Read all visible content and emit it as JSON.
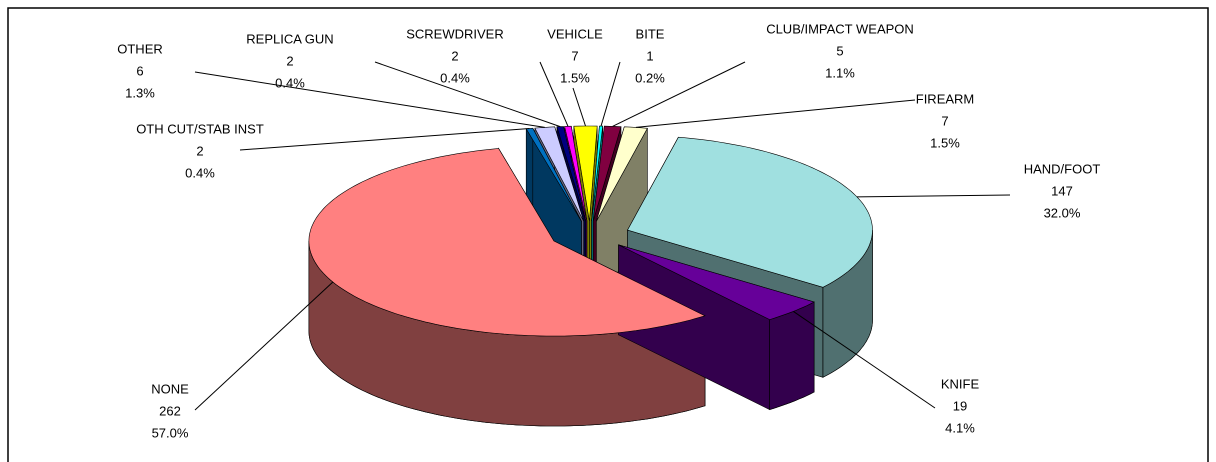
{
  "chart_data": {
    "type": "pie3d",
    "categories": [
      "HAND/FOOT",
      "KNIFE",
      "NONE",
      "OTH CUT/STAB INST",
      "OTHER",
      "REPLICA GUN",
      "SCREWDRIVER",
      "VEHICLE",
      "BITE",
      "CLUB/IMPACT WEAPON",
      "FIREARM"
    ],
    "values": [
      147,
      19,
      262,
      2,
      6,
      2,
      2,
      7,
      1,
      5,
      7
    ],
    "percent_labels": [
      "32.0%",
      "4.1%",
      "57.0%",
      "0.4%",
      "1.3%",
      "0.4%",
      "0.4%",
      "1.5%",
      "0.2%",
      "1.1%",
      "1.5%"
    ],
    "colors": [
      "#a0e0e0",
      "#660099",
      "#ff8080",
      "#0070c0",
      "#ccccff",
      "#000080",
      "#ff00ff",
      "#ffff00",
      "#00ffff",
      "#800040",
      "#ffffcc"
    ]
  }
}
